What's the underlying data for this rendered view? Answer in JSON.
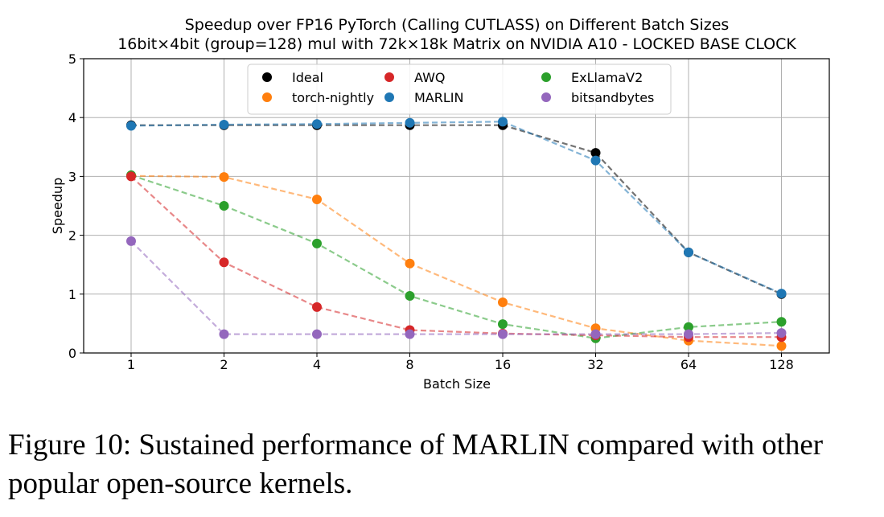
{
  "chart_data": {
    "type": "line",
    "title": "Speedup over FP16 PyTorch (Calling CUTLASS) on Different Batch Sizes",
    "subtitle": "16bit×4bit (group=128) mul with 72k×18k Matrix on NVIDIA A10 - LOCKED BASE CLOCK",
    "xlabel": "Batch Size",
    "ylabel": "Speedup",
    "categories": [
      "1",
      "2",
      "4",
      "8",
      "16",
      "32",
      "64",
      "128"
    ],
    "yticks": [
      "0",
      "1",
      "2",
      "3",
      "4",
      "5"
    ],
    "ylim": [
      0,
      5
    ],
    "grid": true,
    "legend_position": "top-center",
    "series": [
      {
        "name": "Ideal",
        "color": "#000000",
        "values": [
          3.87,
          3.87,
          3.87,
          3.87,
          3.87,
          3.4,
          1.71,
          1.0
        ]
      },
      {
        "name": "MARLIN",
        "color": "#1f77b4",
        "values": [
          3.86,
          3.88,
          3.89,
          3.91,
          3.93,
          3.27,
          1.71,
          1.01
        ]
      },
      {
        "name": "torch-nightly",
        "color": "#ff7f0e",
        "values": [
          3.01,
          2.99,
          2.61,
          1.52,
          0.86,
          0.42,
          0.21,
          0.12
        ]
      },
      {
        "name": "ExLlamaV2",
        "color": "#2ca02c",
        "values": [
          3.02,
          2.5,
          1.86,
          0.97,
          0.49,
          0.25,
          0.44,
          0.53
        ]
      },
      {
        "name": "AWQ",
        "color": "#d62728",
        "values": [
          3.0,
          1.54,
          0.78,
          0.39,
          0.33,
          0.3,
          0.27,
          0.27
        ]
      },
      {
        "name": "bitsandbytes",
        "color": "#9467bd",
        "values": [
          1.9,
          0.32,
          0.32,
          0.32,
          0.32,
          0.32,
          0.32,
          0.34
        ]
      }
    ],
    "legend_order": [
      0,
      2,
      4,
      1,
      3,
      5
    ]
  },
  "caption": {
    "text": "Figure 10: Sustained performance of MARLIN compared with other popular open-source kernels."
  }
}
